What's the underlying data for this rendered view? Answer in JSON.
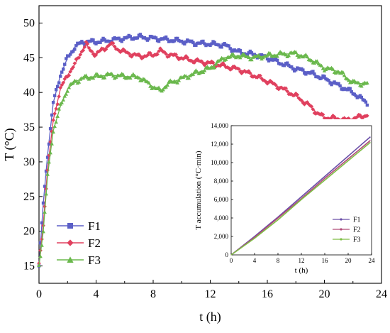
{
  "chart_data": [
    {
      "type": "line",
      "xlabel": "t (h)",
      "ylabel": "T (°C)",
      "xlim": [
        0,
        24
      ],
      "ylim": [
        12.5,
        52.5
      ],
      "xticks": [
        "0",
        "4",
        "8",
        "12",
        "16",
        "20",
        "24"
      ],
      "yticks": [
        "15",
        "20",
        "25",
        "30",
        "35",
        "40",
        "45",
        "50"
      ],
      "legend_position": "bottom-left",
      "series": [
        {
          "name": "F1",
          "color": "#5b5fc7",
          "marker": "square",
          "points": [
            [
              0,
              15
            ],
            [
              0.3,
              24
            ],
            [
              0.6,
              31
            ],
            [
              1.0,
              38.5
            ],
            [
              1.5,
              42.5
            ],
            [
              2.0,
              45
            ],
            [
              2.5,
              46.5
            ],
            [
              3.0,
              47.2
            ],
            [
              3.5,
              47.3
            ],
            [
              4.0,
              47.3
            ],
            [
              5.0,
              47.5
            ],
            [
              6.0,
              47.8
            ],
            [
              7.0,
              48.0
            ],
            [
              8.0,
              47.8
            ],
            [
              9.0,
              47.6
            ],
            [
              10.0,
              47.4
            ],
            [
              11.0,
              47.1
            ],
            [
              12.0,
              47.0
            ],
            [
              13.0,
              46.8
            ],
            [
              13.5,
              46.3
            ],
            [
              14.0,
              45.8
            ],
            [
              15.0,
              45.5
            ],
            [
              16.0,
              45.0
            ],
            [
              17.0,
              44.2
            ],
            [
              18.0,
              43.4
            ],
            [
              19.0,
              42.8
            ],
            [
              20.0,
              42.0
            ],
            [
              21.0,
              41.0
            ],
            [
              22.0,
              40.0
            ],
            [
              22.5,
              39.2
            ],
            [
              23.0,
              38.5
            ]
          ]
        },
        {
          "name": "F2",
          "color": "#e0405e",
          "marker": "diamond",
          "points": [
            [
              0,
              15
            ],
            [
              0.3,
              21
            ],
            [
              0.6,
              29
            ],
            [
              1.0,
              36
            ],
            [
              1.5,
              40.5
            ],
            [
              2.0,
              42.5
            ],
            [
              2.5,
              44
            ],
            [
              3.0,
              46
            ],
            [
              3.3,
              47.0
            ],
            [
              3.6,
              46.0
            ],
            [
              4.0,
              45.5
            ],
            [
              4.5,
              46.2
            ],
            [
              5.0,
              47.0
            ],
            [
              5.5,
              46.3
            ],
            [
              6.0,
              45.8
            ],
            [
              7.0,
              45.2
            ],
            [
              8.0,
              45.4
            ],
            [
              8.5,
              46.0
            ],
            [
              9.0,
              45.5
            ],
            [
              10.0,
              45.0
            ],
            [
              11.0,
              44.5
            ],
            [
              12.0,
              44.2
            ],
            [
              13.0,
              43.8
            ],
            [
              14.0,
              43.3
            ],
            [
              15.0,
              42.5
            ],
            [
              16.0,
              41.6
            ],
            [
              17.0,
              40.6
            ],
            [
              18.0,
              39.5
            ],
            [
              19.0,
              38.0
            ],
            [
              19.5,
              37.0
            ],
            [
              20.0,
              36.4
            ],
            [
              21.0,
              36.2
            ],
            [
              21.5,
              36.0
            ],
            [
              22.0,
              36.2
            ],
            [
              23.0,
              36.8
            ]
          ]
        },
        {
          "name": "F3",
          "color": "#6ab84c",
          "marker": "triangle",
          "points": [
            [
              0,
              15
            ],
            [
              0.3,
              20
            ],
            [
              0.6,
              28
            ],
            [
              1.0,
              34.5
            ],
            [
              1.5,
              38
            ],
            [
              2.0,
              40.5
            ],
            [
              2.5,
              41.5
            ],
            [
              3.0,
              42.0
            ],
            [
              3.5,
              42.2
            ],
            [
              4.0,
              42.3
            ],
            [
              5.0,
              42.5
            ],
            [
              6.0,
              42.3
            ],
            [
              7.0,
              42.2
            ],
            [
              8.0,
              40.8
            ],
            [
              8.5,
              40.2
            ],
            [
              9.0,
              41.2
            ],
            [
              10.0,
              42.0
            ],
            [
              11.0,
              42.8
            ],
            [
              12.0,
              43.5
            ],
            [
              13.0,
              45.0
            ],
            [
              14.0,
              45.3
            ],
            [
              15.0,
              45.0
            ],
            [
              16.0,
              45.3
            ],
            [
              17.0,
              45.5
            ],
            [
              18.0,
              45.6
            ],
            [
              19.0,
              44.8
            ],
            [
              20.0,
              43.5
            ],
            [
              21.0,
              43.0
            ],
            [
              21.5,
              42.2
            ],
            [
              22.0,
              41.4
            ],
            [
              23.0,
              41.2
            ]
          ]
        }
      ]
    },
    {
      "type": "line",
      "xlabel": "t (h)",
      "ylabel": "T accumulation (°C·min)",
      "xlim": [
        0,
        24
      ],
      "ylim": [
        0,
        14000
      ],
      "xticks": [
        "0",
        "4",
        "8",
        "12",
        "16",
        "20",
        "24"
      ],
      "yticks": [
        "0",
        "2,000",
        "4,000",
        "6,000",
        "8,000",
        "10,000",
        "12,000",
        "14,000"
      ],
      "legend_position": "bottom-right",
      "series": [
        {
          "name": "F1",
          "color": "#6a4fa8",
          "points": [
            [
              0,
              0
            ],
            [
              4,
              2000
            ],
            [
              8,
              4100
            ],
            [
              12,
              6300
            ],
            [
              16,
              8500
            ],
            [
              20,
              10700
            ],
            [
              23.8,
              12800
            ]
          ]
        },
        {
          "name": "F2",
          "color": "#b04a78",
          "points": [
            [
              0,
              0
            ],
            [
              4,
              1900
            ],
            [
              8,
              4000
            ],
            [
              12,
              6100
            ],
            [
              16,
              8300
            ],
            [
              20,
              10400
            ],
            [
              23.8,
              12400
            ]
          ]
        },
        {
          "name": "F3",
          "color": "#7fbe45",
          "points": [
            [
              0,
              0
            ],
            [
              4,
              1800
            ],
            [
              8,
              3800
            ],
            [
              12,
              6000
            ],
            [
              16,
              8100
            ],
            [
              20,
              10200
            ],
            [
              23.8,
              12200
            ]
          ]
        }
      ]
    }
  ]
}
